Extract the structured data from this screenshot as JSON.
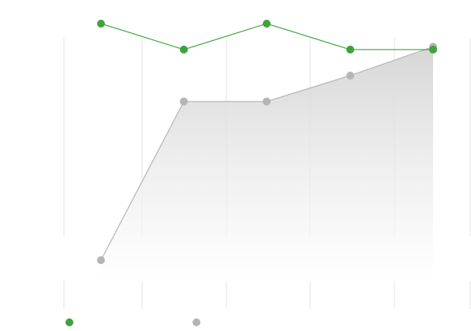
{
  "chart_data": {
    "type": "line",
    "title": "",
    "xlabel": "",
    "ylabel": "",
    "categories": [
      "",
      "",
      "",
      "",
      ""
    ],
    "ylim": [
      0,
      100
    ],
    "grid": "vertical",
    "legend_position": "bottom-left",
    "series": [
      {
        "values": [
          97,
          88,
          97,
          88,
          88
        ],
        "color": "#3fa33b",
        "style": "line"
      },
      {
        "values": [
          15,
          70,
          70,
          79,
          89
        ],
        "color": "#b5b5b5",
        "style": "area"
      }
    ]
  }
}
